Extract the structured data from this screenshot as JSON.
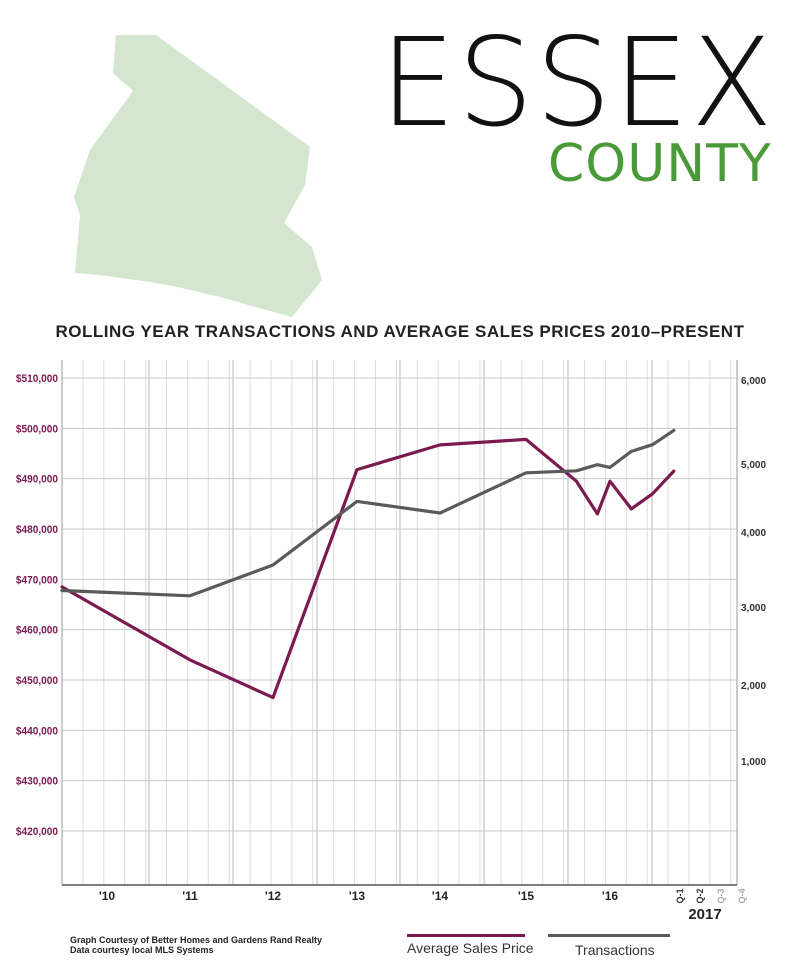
{
  "header": {
    "title": "ESSEX",
    "subtitle": "COUNTY"
  },
  "chart_title": "ROLLING YEAR TRANSACTIONS AND AVERAGE SALES PRICES 2010–PRESENT",
  "colors": {
    "price": "#7b1a4e",
    "transactions": "#5a5a5a",
    "map_fill": "#d4e6cf",
    "subtitle": "#4a9a3a",
    "grid": "#c8c8c8",
    "left_tick": "#7b1a4e",
    "year_label": "#222222",
    "future_quarter": "#aaaaaa"
  },
  "chart_data": {
    "type": "line",
    "title": "ROLLING YEAR TRANSACTIONS AND AVERAGE SALES PRICES 2010–PRESENT",
    "x_labels": [
      "'10",
      "'11",
      "'12",
      "'13",
      "'14",
      "'15",
      "'16"
    ],
    "quarter_labels": [
      "Q-1",
      "Q-2",
      "Q-3",
      "Q-4"
    ],
    "quarter_year_label": "2017",
    "y_left": {
      "ticks": [
        "$510,000",
        "$500,000",
        "$490,000",
        "$480,000",
        "$470,000",
        "$460,000",
        "$450,000",
        "$440,000",
        "$430,000",
        "$420,000"
      ],
      "tick_values": [
        510000,
        500000,
        490000,
        480000,
        470000,
        460000,
        450000,
        440000,
        430000,
        420000
      ],
      "range": [
        414000,
        513000
      ]
    },
    "y_right": {
      "ticks": [
        "6,000",
        "5,000",
        "4,000",
        "3,000",
        "2,000",
        "1,000"
      ],
      "tick_values": [
        6000,
        5000,
        4000,
        3000,
        2000,
        1000
      ]
    },
    "series": [
      {
        "name": "Average Sales Price",
        "axis": "left",
        "points": [
          [
            "2009.45",
            468500
          ],
          [
            "2011.0",
            454000
          ],
          [
            "2012.0",
            446500
          ],
          [
            "2013.0",
            491800
          ],
          [
            "2014.0",
            496700
          ],
          [
            "2015.0",
            497800
          ],
          [
            "2015.6",
            489500
          ],
          [
            "2015.85",
            483000
          ],
          [
            "2016.0",
            489500
          ],
          [
            "2016.25",
            484000
          ],
          [
            "2016.5",
            487000
          ],
          [
            "2016.75",
            491500
          ]
        ]
      },
      {
        "name": "Transactions",
        "axis": "right",
        "points": [
          [
            "2009.45",
            3220
          ],
          [
            "2011.0",
            3150
          ],
          [
            "2012.0",
            3560
          ],
          [
            "2013.0",
            4450
          ],
          [
            "2014.0",
            4280
          ],
          [
            "2015.0",
            4870
          ],
          [
            "2015.6",
            4900
          ],
          [
            "2015.85",
            4990
          ],
          [
            "2016.0",
            4950
          ],
          [
            "2016.25",
            5150
          ],
          [
            "2016.5",
            5230
          ],
          [
            "2016.75",
            5400
          ]
        ]
      }
    ]
  },
  "legend": {
    "price": "Average Sales Price",
    "transactions": "Transactions"
  },
  "credits": {
    "line1": "Graph Courtesy of Better Homes and Gardens Rand Realty",
    "line2": "Data courtesy local MLS Systems"
  }
}
